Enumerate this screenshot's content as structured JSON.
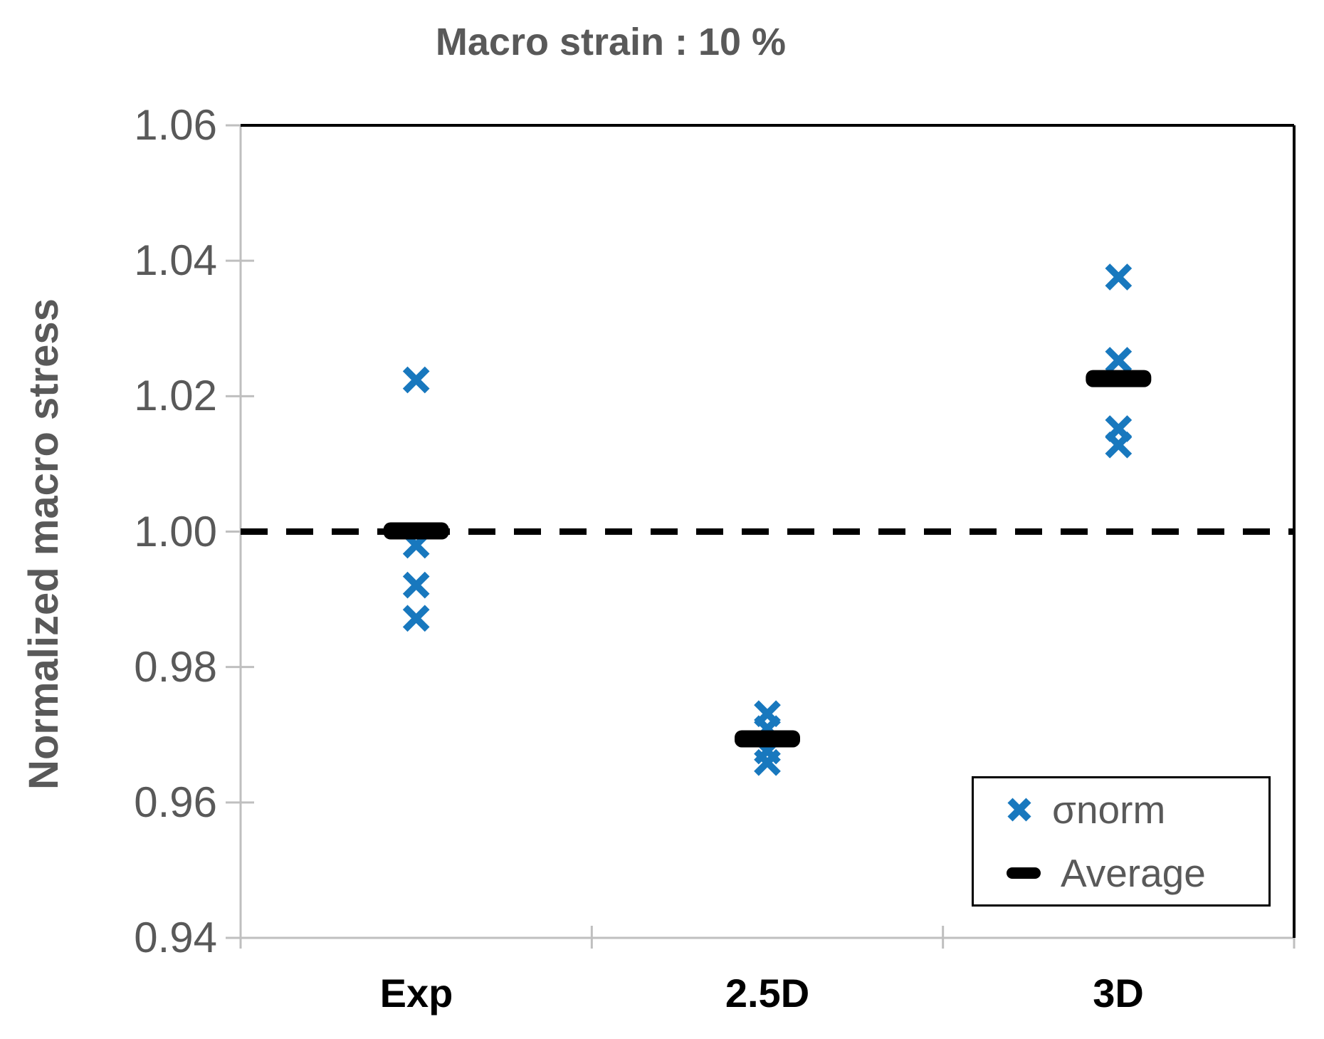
{
  "chart_data": {
    "type": "scatter",
    "title": "Macro strain : 10 %",
    "ylabel": "Normalized macro stress",
    "categories": [
      "Exp",
      "2.5D",
      "3D"
    ],
    "ylim": [
      0.94,
      1.06
    ],
    "yticks": [
      1.06,
      1.04,
      1.02,
      1.0,
      0.98,
      0.96,
      0.94
    ],
    "ytick_labels": [
      "1.06",
      "1.04",
      "1.02",
      "1.00",
      "0.98",
      "0.96",
      "0.94"
    ],
    "grid": false,
    "baseline_dashed_at": 1.0,
    "series": [
      {
        "name": "σnorm",
        "marker": "x",
        "color": "#1878be",
        "points_by_category": [
          [
            1.0224,
            0.998,
            0.9921,
            0.9872
          ],
          [
            0.9731,
            0.9709,
            0.9676,
            0.9659
          ],
          [
            1.0376,
            1.0253,
            1.0152,
            1.0128
          ]
        ]
      },
      {
        "name": "Average",
        "marker": "dash",
        "color": "#000000",
        "points_by_category": [
          1.0001,
          0.9694,
          1.0226
        ]
      }
    ],
    "legend": {
      "position": "bottom-right",
      "items": [
        {
          "label": "σnorm"
        },
        {
          "label": "Average"
        }
      ]
    },
    "colors": {
      "marker_blue": "#1878be",
      "average_black": "#000000",
      "axis_gray": "#bfbfbf",
      "text_gray": "#595959",
      "border_black": "#000000"
    }
  }
}
